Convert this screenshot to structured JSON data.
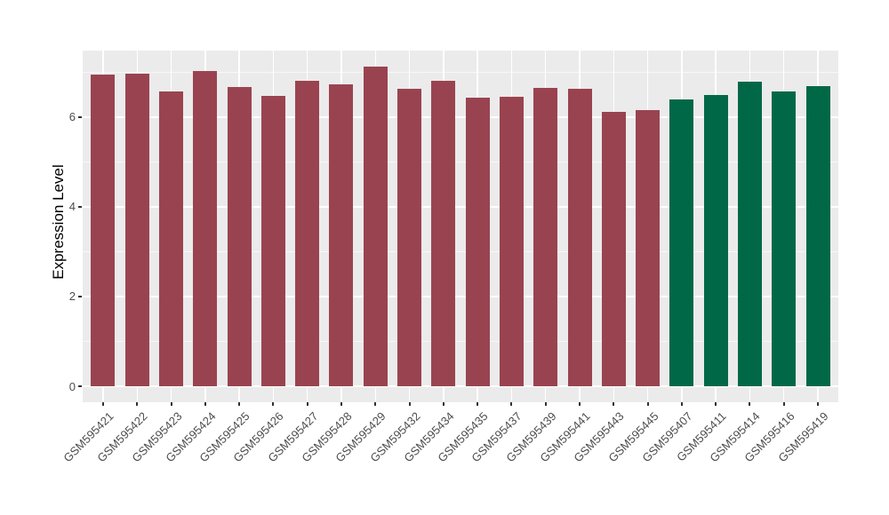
{
  "chart_data": {
    "type": "bar",
    "title": "",
    "xlabel": "",
    "ylabel": "Expression Level",
    "ylim": [
      -0.36,
      7.46
    ],
    "yticks": [
      0,
      2,
      4,
      6
    ],
    "minor_gridlines": [
      1,
      3,
      5,
      7
    ],
    "legend_position": "none",
    "grid": "white major and minor horizontal lines plus vertical category lines on gray panel",
    "x_label_rotation_deg": 45,
    "colors": {
      "groupA": "#9A4350",
      "groupB": "#006847",
      "panel_background": "#EBEBEB",
      "gridline": "#FFFFFF",
      "axis_text": "#4D4D4D",
      "axis_title": "#000000",
      "tick_mark": "#333333",
      "figure_background": "#FFFFFF"
    },
    "bars": [
      {
        "label": "GSM595421",
        "value": 6.95,
        "group": "groupA"
      },
      {
        "label": "GSM595422",
        "value": 6.97,
        "group": "groupA"
      },
      {
        "label": "GSM595423",
        "value": 6.57,
        "group": "groupA"
      },
      {
        "label": "GSM595424",
        "value": 7.02,
        "group": "groupA"
      },
      {
        "label": "GSM595425",
        "value": 6.66,
        "group": "groupA"
      },
      {
        "label": "GSM595426",
        "value": 6.46,
        "group": "groupA"
      },
      {
        "label": "GSM595427",
        "value": 6.8,
        "group": "groupA"
      },
      {
        "label": "GSM595428",
        "value": 6.73,
        "group": "groupA"
      },
      {
        "label": "GSM595429",
        "value": 7.13,
        "group": "groupA"
      },
      {
        "label": "GSM595432",
        "value": 6.63,
        "group": "groupA"
      },
      {
        "label": "GSM595434",
        "value": 6.8,
        "group": "groupA"
      },
      {
        "label": "GSM595435",
        "value": 6.43,
        "group": "groupA"
      },
      {
        "label": "GSM595437",
        "value": 6.45,
        "group": "groupA"
      },
      {
        "label": "GSM595439",
        "value": 6.64,
        "group": "groupA"
      },
      {
        "label": "GSM595441",
        "value": 6.62,
        "group": "groupA"
      },
      {
        "label": "GSM595443",
        "value": 6.12,
        "group": "groupA"
      },
      {
        "label": "GSM595445",
        "value": 6.15,
        "group": "groupA"
      },
      {
        "label": "GSM595407",
        "value": 6.38,
        "group": "groupB"
      },
      {
        "label": "GSM595411",
        "value": 6.49,
        "group": "groupB"
      },
      {
        "label": "GSM595414",
        "value": 6.78,
        "group": "groupB"
      },
      {
        "label": "GSM595416",
        "value": 6.57,
        "group": "groupB"
      },
      {
        "label": "GSM595419",
        "value": 6.69,
        "group": "groupB"
      }
    ]
  }
}
